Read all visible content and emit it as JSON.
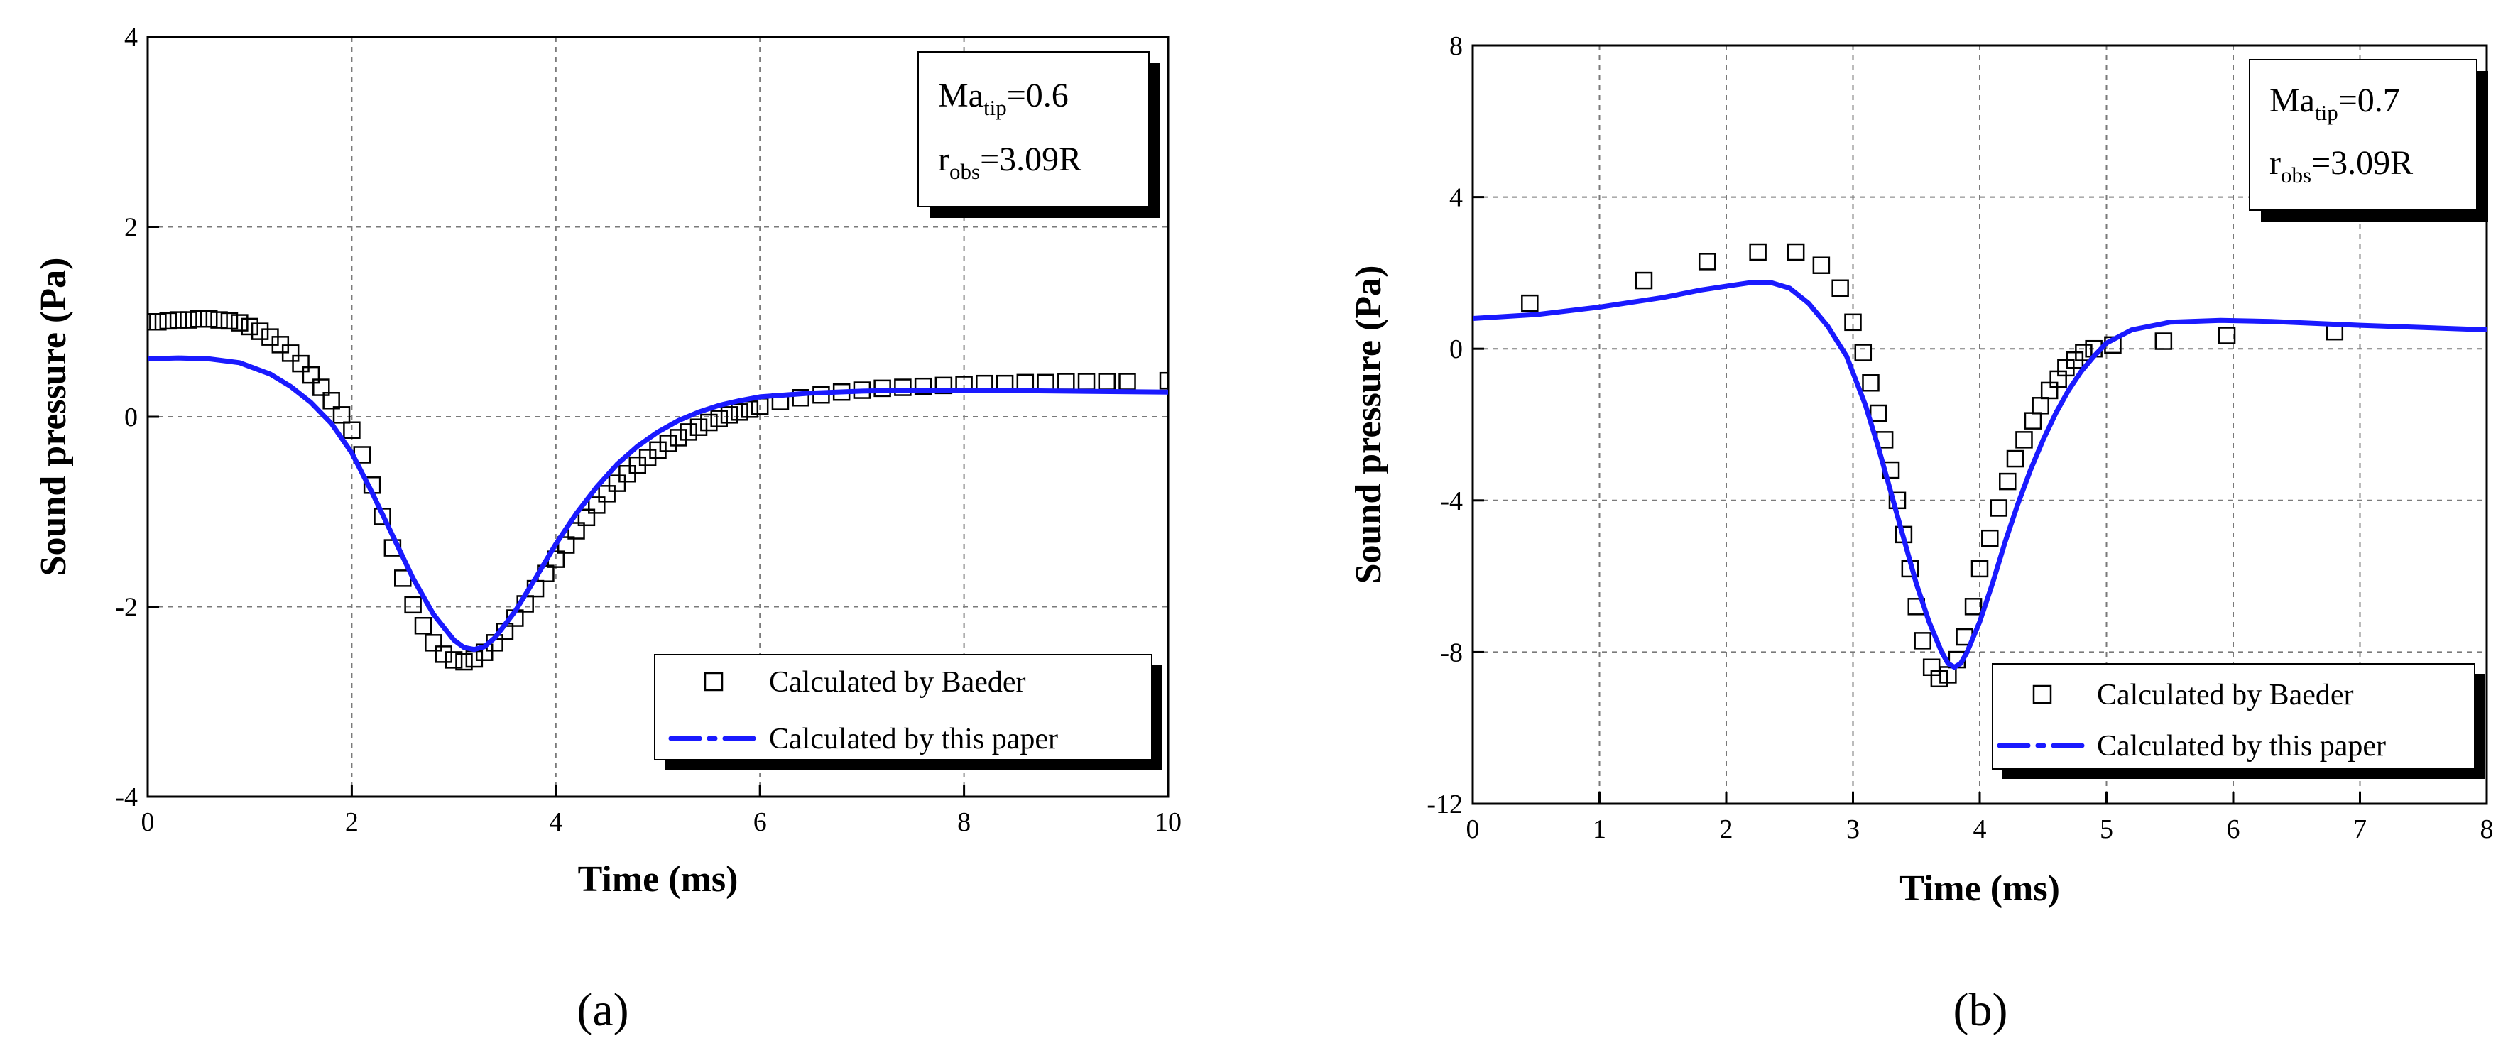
{
  "chart_data": [
    {
      "type": "line",
      "panel_label": "(a)",
      "xlabel": "Time (ms)",
      "ylabel": "Sound pressure (Pa)",
      "xlim": [
        0,
        10
      ],
      "ylim": [
        -4,
        4
      ],
      "xticks": [
        0,
        2,
        4,
        6,
        8,
        10
      ],
      "yticks": [
        -4,
        -2,
        0,
        2,
        4
      ],
      "grid": true,
      "annotation": [
        {
          "base": "Ma",
          "sub": "tip",
          "rest": "=0.6"
        },
        {
          "base": "r",
          "sub": "obs",
          "rest": "=3.09R"
        }
      ],
      "legend_position": "bottom-right",
      "series": [
        {
          "name": "Calculated by Baeder",
          "style": "open-square-markers",
          "x": [
            0,
            0.1,
            0.2,
            0.3,
            0.4,
            0.5,
            0.6,
            0.7,
            0.8,
            0.9,
            1.0,
            1.1,
            1.2,
            1.3,
            1.4,
            1.5,
            1.6,
            1.7,
            1.8,
            1.9,
            2.0,
            2.1,
            2.2,
            2.3,
            2.4,
            2.5,
            2.6,
            2.7,
            2.8,
            2.9,
            3.0,
            3.1,
            3.2,
            3.3,
            3.4,
            3.5,
            3.6,
            3.7,
            3.8,
            3.9,
            4.0,
            4.1,
            4.2,
            4.3,
            4.4,
            4.5,
            4.6,
            4.7,
            4.8,
            4.9,
            5.0,
            5.1,
            5.2,
            5.3,
            5.4,
            5.5,
            5.6,
            5.7,
            5.8,
            5.9,
            6.0,
            6.2,
            6.4,
            6.6,
            6.8,
            7.0,
            7.2,
            7.4,
            7.6,
            7.8,
            8.0,
            8.2,
            8.4,
            8.6,
            8.8,
            9.0,
            9.2,
            9.4,
            9.6,
            10.0
          ],
          "y": [
            1.0,
            1.0,
            1.01,
            1.02,
            1.02,
            1.03,
            1.03,
            1.02,
            1.01,
            0.99,
            0.95,
            0.9,
            0.84,
            0.76,
            0.67,
            0.56,
            0.44,
            0.31,
            0.17,
            0.02,
            -0.14,
            -0.4,
            -0.72,
            -1.05,
            -1.38,
            -1.7,
            -1.98,
            -2.2,
            -2.38,
            -2.5,
            -2.56,
            -2.58,
            -2.55,
            -2.48,
            -2.38,
            -2.26,
            -2.12,
            -1.97,
            -1.81,
            -1.65,
            -1.5,
            -1.35,
            -1.2,
            -1.06,
            -0.93,
            -0.81,
            -0.7,
            -0.6,
            -0.51,
            -0.43,
            -0.35,
            -0.28,
            -0.22,
            -0.16,
            -0.11,
            -0.06,
            -0.02,
            0.02,
            0.05,
            0.08,
            0.11,
            0.16,
            0.2,
            0.23,
            0.26,
            0.28,
            0.3,
            0.31,
            0.32,
            0.33,
            0.34,
            0.35,
            0.35,
            0.36,
            0.36,
            0.37,
            0.37,
            0.37,
            0.37,
            0.38
          ]
        },
        {
          "name": "Calculated by this paper",
          "style": "solid-blue-line",
          "color": "#1a1aff",
          "x": [
            0,
            0.3,
            0.6,
            0.9,
            1.2,
            1.4,
            1.6,
            1.8,
            2.0,
            2.2,
            2.4,
            2.6,
            2.8,
            3.0,
            3.1,
            3.2,
            3.3,
            3.4,
            3.6,
            3.8,
            4.0,
            4.2,
            4.4,
            4.6,
            4.8,
            5.0,
            5.2,
            5.4,
            5.6,
            5.8,
            6.0,
            6.5,
            7.0,
            7.5,
            8.0,
            9.0,
            10.0
          ],
          "y": [
            0.61,
            0.62,
            0.61,
            0.57,
            0.45,
            0.32,
            0.15,
            -0.07,
            -0.38,
            -0.8,
            -1.25,
            -1.7,
            -2.08,
            -2.35,
            -2.43,
            -2.45,
            -2.42,
            -2.33,
            -2.05,
            -1.7,
            -1.34,
            -1.02,
            -0.74,
            -0.5,
            -0.31,
            -0.16,
            -0.04,
            0.05,
            0.12,
            0.17,
            0.21,
            0.25,
            0.27,
            0.28,
            0.28,
            0.27,
            0.26
          ]
        }
      ]
    },
    {
      "type": "line",
      "panel_label": "(b)",
      "xlabel": "Time (ms)",
      "ylabel": "Sound pressure (Pa)",
      "xlim": [
        0,
        8
      ],
      "ylim": [
        -12,
        8
      ],
      "xticks": [
        0,
        1,
        2,
        3,
        4,
        5,
        6,
        7,
        8
      ],
      "yticks": [
        -12,
        -8,
        -4,
        0,
        4,
        8
      ],
      "grid": true,
      "annotation": [
        {
          "base": "Ma",
          "sub": "tip",
          "rest": "=0.7"
        },
        {
          "base": "r",
          "sub": "obs",
          "rest": "=3.09R"
        }
      ],
      "legend_position": "bottom-right",
      "series": [
        {
          "name": "Calculated by Baeder",
          "style": "open-square-markers",
          "x": [
            0.45,
            1.35,
            1.85,
            2.25,
            2.55,
            2.75,
            2.9,
            3.0,
            3.08,
            3.14,
            3.2,
            3.25,
            3.3,
            3.35,
            3.4,
            3.45,
            3.5,
            3.55,
            3.62,
            3.68,
            3.75,
            3.82,
            3.88,
            3.95,
            4.0,
            4.08,
            4.15,
            4.22,
            4.28,
            4.35,
            4.42,
            4.48,
            4.55,
            4.62,
            4.68,
            4.75,
            4.82,
            4.9,
            5.05,
            5.45,
            5.95,
            6.8
          ],
          "y": [
            1.2,
            1.8,
            2.3,
            2.55,
            2.55,
            2.2,
            1.6,
            0.7,
            -0.1,
            -0.9,
            -1.7,
            -2.4,
            -3.2,
            -4.0,
            -4.9,
            -5.8,
            -6.8,
            -7.7,
            -8.4,
            -8.7,
            -8.6,
            -8.2,
            -7.6,
            -6.8,
            -5.8,
            -5.0,
            -4.2,
            -3.5,
            -2.9,
            -2.4,
            -1.9,
            -1.5,
            -1.1,
            -0.8,
            -0.5,
            -0.3,
            -0.1,
            0.0,
            0.1,
            0.2,
            0.35,
            0.45
          ]
        },
        {
          "name": "Calculated by this paper",
          "style": "solid-blue-line",
          "color": "#1a1aff",
          "x": [
            0,
            0.5,
            1.0,
            1.5,
            1.8,
            2.0,
            2.2,
            2.35,
            2.5,
            2.65,
            2.8,
            2.95,
            3.1,
            3.2,
            3.3,
            3.4,
            3.5,
            3.6,
            3.7,
            3.75,
            3.8,
            3.85,
            3.9,
            4.0,
            4.1,
            4.2,
            4.3,
            4.4,
            4.5,
            4.6,
            4.7,
            4.8,
            4.9,
            5.0,
            5.2,
            5.5,
            5.9,
            6.3,
            7.0,
            8.0
          ],
          "y": [
            0.8,
            0.9,
            1.1,
            1.35,
            1.55,
            1.65,
            1.75,
            1.75,
            1.6,
            1.2,
            0.6,
            -0.2,
            -1.5,
            -2.6,
            -3.8,
            -5.0,
            -6.2,
            -7.2,
            -8.0,
            -8.3,
            -8.4,
            -8.3,
            -8.0,
            -7.2,
            -6.2,
            -5.1,
            -4.1,
            -3.2,
            -2.4,
            -1.7,
            -1.1,
            -0.6,
            -0.2,
            0.15,
            0.5,
            0.7,
            0.75,
            0.72,
            0.62,
            0.5
          ]
        }
      ]
    }
  ]
}
